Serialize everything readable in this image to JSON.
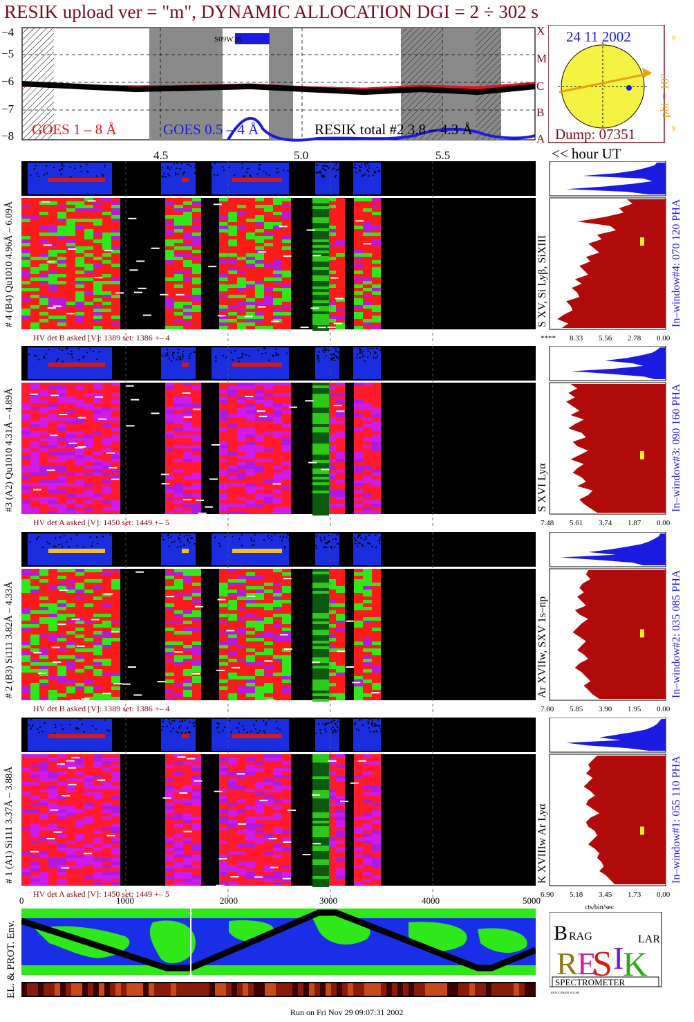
{
  "header": {
    "title": "RESIK upload ver = \"m\", DYNAMIC ALLOCATION  DGI =   2 ÷ 302 s"
  },
  "goes_panel": {
    "legend": [
      "GOES 1 – 8 Å",
      "GOES 0.5 – 4 Å",
      "RESIK total #2  3.8 – 4.3 Å"
    ],
    "legend_colors": [
      "#e8101a",
      "#1a1ae0",
      "#000000"
    ],
    "y_ticks": [
      "−4",
      "−5",
      "−6",
      "−7",
      "−8"
    ],
    "class_letters": [
      "X",
      "M",
      "C",
      "B",
      "A"
    ],
    "x_ticks": [
      "4.5",
      "5.0",
      "5.5"
    ],
    "x_unit_label": "<< hour UT",
    "annotation": "S09W36"
  },
  "sun_panel": {
    "date": "24 11 2002",
    "dump": "Dump: 07351",
    "phi": "phi = 10°",
    "side_marks": [
      "u",
      "9"
    ]
  },
  "detectors": [
    {
      "id": 4,
      "left_label": "# 4 (B4) Qu1010 4.96Å – 6.09Å",
      "line_label": "S XV, Si Lyβ, SiXIII",
      "window_label": "In–window#4:  070 120 PHA",
      "hv_text": "HV det B asked [V]:  1389 set:  1386 +–    4",
      "hist_ticks": [
        "****",
        "8.33",
        "5.56",
        "2.78",
        "0.00"
      ],
      "colors": [
        "#ff1a1a",
        "#2ee81a",
        "#b81ad8"
      ],
      "blue_profile": [
        0.08,
        0.1,
        0.18,
        0.28,
        0.45,
        0.75,
        0.2,
        0.12,
        0.3,
        0.55,
        0.9,
        0.35,
        0.15
      ],
      "red_profile": [
        0.35,
        0.3,
        0.42,
        0.38,
        0.55,
        0.8,
        0.5,
        0.45,
        0.62,
        0.58,
        0.7,
        0.65,
        0.6,
        0.72,
        0.68,
        0.78,
        0.74,
        0.7,
        0.82,
        0.76,
        0.85,
        0.8,
        0.78,
        0.9,
        0.86,
        0.84,
        0.92,
        0.98,
        0.88,
        0.94
      ],
      "marker_pos": 0.3
    },
    {
      "id": 3,
      "left_label": "#3 (A2) Qu1010  4.31Å – 4.89Å",
      "line_label": "S XVI Lyα",
      "window_label": "In–window#3:  090 160 PHA",
      "hv_text": "HV det A asked [V]:  1450 set:  1449 +–    5",
      "hist_ticks": [
        "7.48",
        "5.61",
        "3.74",
        "1.87",
        "0.00"
      ],
      "colors": [
        "#ff1a2e",
        "#d01ae8",
        "#b01ae0"
      ],
      "blue_profile": [
        0.05,
        0.08,
        0.12,
        0.22,
        0.35,
        0.55,
        0.3,
        0.2,
        0.45,
        0.85,
        0.5,
        0.2,
        0.1
      ],
      "red_profile": [
        0.86,
        0.8,
        0.88,
        0.82,
        0.9,
        0.84,
        0.78,
        0.86,
        0.74,
        0.82,
        0.88,
        0.76,
        0.72,
        0.84,
        0.8,
        0.7,
        0.78,
        0.86,
        0.74,
        0.8,
        0.84,
        0.76,
        0.72,
        0.8,
        0.66,
        0.7,
        0.78,
        0.74,
        0.68,
        0.62
      ],
      "marker_pos": 0.52
    },
    {
      "id": 2,
      "left_label": "# 2 (B3) Si111  3.82Å – 4.33Å",
      "line_label": "Ar XVIIw, SXV 1s–np",
      "window_label": "In–window#2:  035 085 PHA",
      "hv_text": "HV det B asked [V]:  1389 set:  1386 +–    4",
      "hist_ticks": [
        "7.80",
        "5.85",
        "3.90",
        "1.95",
        "0.00"
      ],
      "colors": [
        "#ff1a1a",
        "#2ee81a",
        "#b81ad8"
      ],
      "blue_profile": [
        0.05,
        0.06,
        0.1,
        0.15,
        0.22,
        0.35,
        0.5,
        0.7,
        0.45,
        0.95,
        0.6,
        0.3,
        0.2
      ],
      "red_profile": [
        0.7,
        0.72,
        0.68,
        0.75,
        0.78,
        0.74,
        0.8,
        0.76,
        0.72,
        0.82,
        0.78,
        0.7,
        0.76,
        0.8,
        0.84,
        0.78,
        0.72,
        0.76,
        0.8,
        0.74,
        0.7,
        0.78,
        0.82,
        0.76,
        0.72,
        0.68,
        0.74,
        0.7,
        0.66,
        0.6
      ],
      "marker_pos": 0.46
    },
    {
      "id": 1,
      "left_label": "# 1 (A1) Si111  3.37Å – 3.88Å",
      "line_label": "K XVIIIw  Ar Lyα",
      "window_label": "In–window#1:  055 110 PHA",
      "hv_text": "HV det A asked [V]:  1450 set:  1449 +–    5",
      "hist_ticks": [
        "6.90",
        "5.18",
        "3.45",
        "1.73",
        "0.00"
      ],
      "colors": [
        "#ff1a2e",
        "#d01ae8",
        "#b01ae0"
      ],
      "blue_profile": [
        0.04,
        0.06,
        0.08,
        0.12,
        0.18,
        0.3,
        0.45,
        0.6,
        0.4,
        0.9,
        0.7,
        0.35,
        0.15
      ],
      "red_profile": [
        0.62,
        0.66,
        0.7,
        0.68,
        0.72,
        0.66,
        0.7,
        0.74,
        0.68,
        0.64,
        0.7,
        0.72,
        0.66,
        0.6,
        0.68,
        0.72,
        0.7,
        0.64,
        0.62,
        0.66,
        0.7,
        0.64,
        0.6,
        0.62,
        0.58,
        0.56,
        0.6,
        0.54,
        0.5,
        0.46
      ],
      "marker_pos": 0.55
    }
  ],
  "channel_axis": {
    "ticks": [
      "0",
      "1000",
      "2000",
      "3000",
      "4000",
      "5000"
    ],
    "hist_unit": "cts/bin/sec"
  },
  "map_panel": {
    "label": "EL. & PROT. Env."
  },
  "logo": {
    "letters": "BRAGG RESIK SOLAR",
    "caption": "SPECTROMETER"
  },
  "footer": {
    "run_text": "Run on Fri Nov 29 09:07:31 2002"
  },
  "chart_data": {
    "type": "line",
    "title": "RESIK upload ver = \"m\", DYNAMIC ALLOCATION  DGI =   2 ÷ 302 s",
    "xlabel": "<< hour UT",
    "ylabel": "",
    "x": [
      4.0,
      4.2,
      4.4,
      4.6,
      4.8,
      5.0,
      5.2,
      5.4,
      5.6,
      5.8
    ],
    "xlim": [
      4.0,
      5.8
    ],
    "ylim": [
      -8,
      -4
    ],
    "series": [
      {
        "name": "GOES 1 – 8 Å",
        "values": [
          -6.05,
          -6.1,
          -6.12,
          -6.1,
          -6.05,
          -6.15,
          -6.2,
          -6.1,
          -6.15,
          -6.0
        ]
      },
      {
        "name": "RESIK total #2  3.8 – 4.3 Å",
        "values": [
          -6.0,
          -6.1,
          -6.2,
          -6.15,
          -6.1,
          -6.2,
          -6.3,
          -6.2,
          -6.3,
          -6.1
        ]
      }
    ]
  }
}
